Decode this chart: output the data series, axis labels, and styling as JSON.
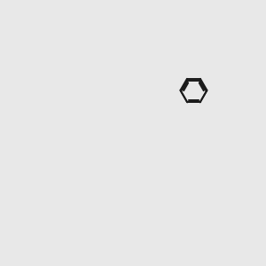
{
  "bg_color": "#e8e8e8",
  "bond_color": "#1a1a1a",
  "bond_width": 1.4,
  "atom_colors": {
    "O": "#ff0000",
    "N": "#0000cc",
    "S": "#bbbb00",
    "H": "#4a9090",
    "C": "#1a1a1a"
  },
  "ring_r": 0.68,
  "figsize": [
    3.0,
    3.0
  ],
  "dpi": 100,
  "xlim": [
    0,
    10
  ],
  "ylim": [
    0,
    10
  ]
}
